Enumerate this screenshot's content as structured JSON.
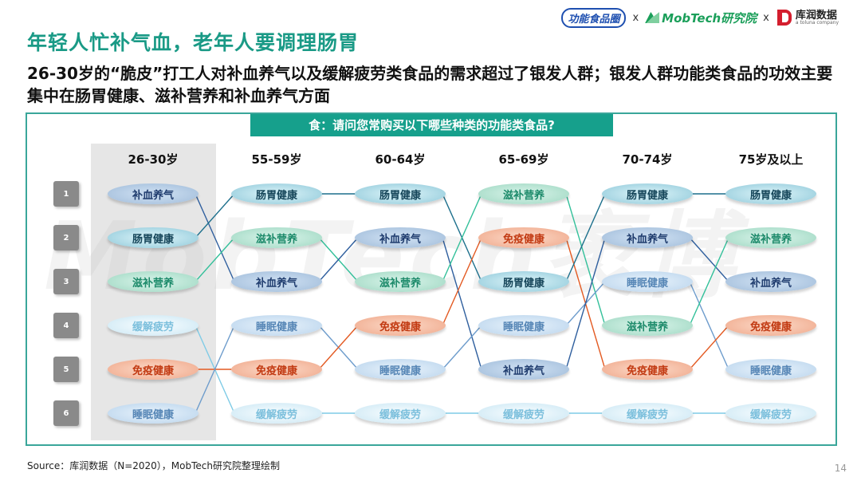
{
  "logos": {
    "gongneng": "功能食品圈",
    "separator": "x",
    "mobtech": "MobTech研究院",
    "kurun_cn": "库润数据",
    "kurun_en": "a toluna company"
  },
  "title": "年轻人忙补气血，老年人要调理肠胃",
  "subtitle": "26-30岁的“脆皮”打工人对补血养气以及缓解疲劳类食品的需求超过了银发人群；银发人群功能类食品的功效主要集中在肠胃健康、滋补营养和补血养气方面",
  "question": "食：请问您常购买以下哪些种类的功能类食品?",
  "watermark": "MobTech袤博",
  "ranks": [
    "1",
    "2",
    "3",
    "4",
    "5",
    "6"
  ],
  "legend_colors": {
    "补血养气": "#2f5f9e",
    "肠胃健康": "#1c6f8c",
    "滋补营养": "#33c09a",
    "缓解疲劳": "#7fcbe6",
    "免疫健康": "#e35a22",
    "睡眠健康": "#6d9ccc"
  },
  "chart_data": {
    "type": "table",
    "columns": [
      {
        "age": "26-30岁",
        "items": [
          "补血养气",
          "肠胃健康",
          "滋补营养",
          "缓解疲劳",
          "免疫健康",
          "睡眠健康"
        ]
      },
      {
        "age": "55-59岁",
        "items": [
          "肠胃健康",
          "滋补营养",
          "补血养气",
          "睡眠健康",
          "免疫健康",
          "缓解疲劳"
        ]
      },
      {
        "age": "60-64岁",
        "items": [
          "肠胃健康",
          "补血养气",
          "滋补营养",
          "免疫健康",
          "睡眠健康",
          "缓解疲劳"
        ]
      },
      {
        "age": "65-69岁",
        "items": [
          "滋补营养",
          "免疫健康",
          "肠胃健康",
          "睡眠健康",
          "补血养气",
          "缓解疲劳"
        ]
      },
      {
        "age": "70-74岁",
        "items": [
          "肠胃健康",
          "补血养气",
          "睡眠健康",
          "滋补营养",
          "免疫健康",
          "缓解疲劳"
        ]
      },
      {
        "age": "75岁及以上",
        "items": [
          "肠胃健康",
          "滋补营养",
          "补血养气",
          "免疫健康",
          "睡眠健康",
          "缓解疲劳"
        ]
      }
    ]
  },
  "source": "Source：库润数据（N=2020），MobTech研究院整理绘制",
  "page_number": "14"
}
